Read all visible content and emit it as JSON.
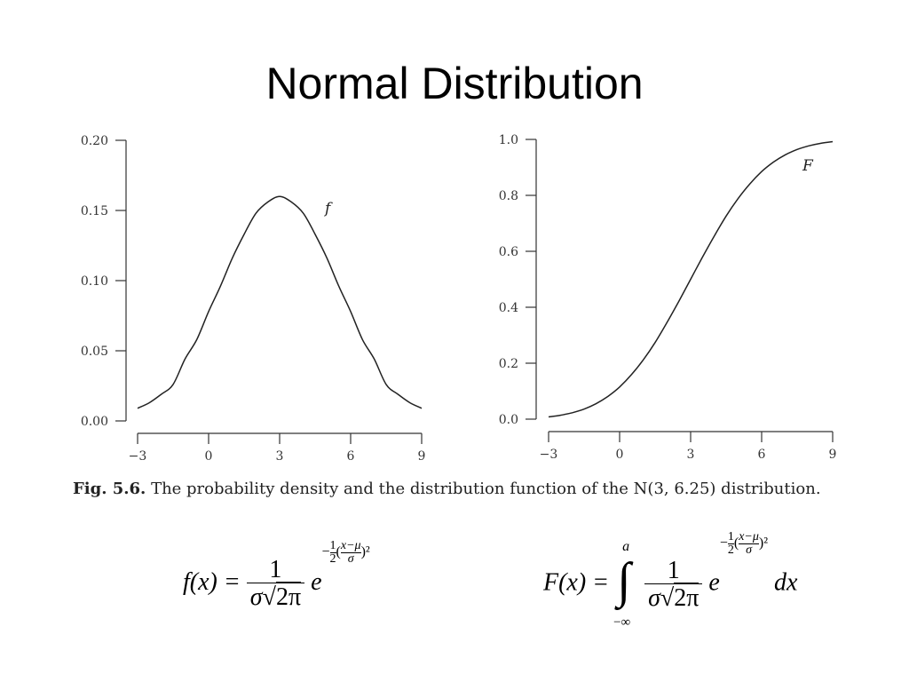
{
  "slide": {
    "title": "Normal Distribution"
  },
  "caption": {
    "fig_label": "Fig. 5.6.",
    "text": "The probability density and the distribution function of the N(3, 6.25) distribution."
  },
  "chart_data": [
    {
      "type": "line",
      "title": "",
      "xlabel": "",
      "ylabel": "",
      "curve_label": "f",
      "xlim": [
        -3,
        9
      ],
      "ylim": [
        0,
        0.2
      ],
      "x_ticks": [
        -3,
        0,
        3,
        6,
        9
      ],
      "x_tick_labels": [
        "−3",
        "0",
        "3",
        "6",
        "9"
      ],
      "y_ticks": [
        0,
        0.05,
        0.1,
        0.15,
        0.2
      ],
      "y_tick_labels": [
        "0.00",
        "0.05",
        "0.10",
        "0.15",
        "0.20"
      ],
      "grid": false,
      "series": [
        {
          "name": "f",
          "x": [
            -3,
            -2.5,
            -2,
            -1.5,
            -1,
            -0.5,
            0,
            0.5,
            1,
            1.5,
            2,
            2.5,
            3,
            3.5,
            4,
            4.5,
            5,
            5.5,
            6,
            6.5,
            7,
            7.5,
            8,
            8.5,
            9
          ],
          "y": [
            0.009,
            0.013,
            0.019,
            0.026,
            0.044,
            0.058,
            0.078,
            0.096,
            0.116,
            0.133,
            0.148,
            0.156,
            0.16,
            0.156,
            0.148,
            0.133,
            0.116,
            0.096,
            0.078,
            0.058,
            0.044,
            0.026,
            0.019,
            0.013,
            0.009
          ]
        }
      ]
    },
    {
      "type": "line",
      "title": "",
      "xlabel": "",
      "ylabel": "",
      "curve_label": "F",
      "xlim": [
        -3,
        9
      ],
      "ylim": [
        0,
        1.0
      ],
      "x_ticks": [
        -3,
        0,
        3,
        6,
        9
      ],
      "x_tick_labels": [
        "−3",
        "0",
        "3",
        "6",
        "9"
      ],
      "y_ticks": [
        0,
        0.2,
        0.4,
        0.6,
        0.8,
        1.0
      ],
      "y_tick_labels": [
        "0.0",
        "0.2",
        "0.4",
        "0.6",
        "0.8",
        "1.0"
      ],
      "grid": false,
      "series": [
        {
          "name": "F",
          "x": [
            -3,
            -2.5,
            -2,
            -1.5,
            -1,
            -0.5,
            0,
            0.5,
            1,
            1.5,
            2,
            2.5,
            3,
            3.5,
            4,
            4.5,
            5,
            5.5,
            6,
            6.5,
            7,
            7.5,
            8,
            8.5,
            9
          ],
          "y": [
            0.008,
            0.014,
            0.023,
            0.036,
            0.055,
            0.081,
            0.115,
            0.159,
            0.212,
            0.274,
            0.345,
            0.421,
            0.5,
            0.579,
            0.655,
            0.726,
            0.788,
            0.841,
            0.885,
            0.919,
            0.945,
            0.964,
            0.977,
            0.986,
            0.992
          ]
        }
      ]
    }
  ],
  "formulas": {
    "pdf": {
      "lhs": "f(x) =",
      "num": "1",
      "den_sigma": "σ",
      "den_sqrt": "2π",
      "base": "e",
      "exp_sign": "−",
      "exp_half_num": "1",
      "exp_half_den": "2",
      "exp_open": "(",
      "exp_inner_num": "x−μ",
      "exp_inner_den": "σ",
      "exp_close": ")²"
    },
    "cdf": {
      "lhs": "F(x) =",
      "int_upper": "a",
      "int_lower": "−∞",
      "num": "1",
      "den_sigma": "σ",
      "den_sqrt": "2π",
      "base": "e",
      "exp_sign": "−",
      "exp_half_num": "1",
      "exp_half_den": "2",
      "exp_open": "(",
      "exp_inner_num": "x−μ",
      "exp_inner_den": "σ",
      "exp_close": ")²",
      "dx": "dx"
    }
  }
}
